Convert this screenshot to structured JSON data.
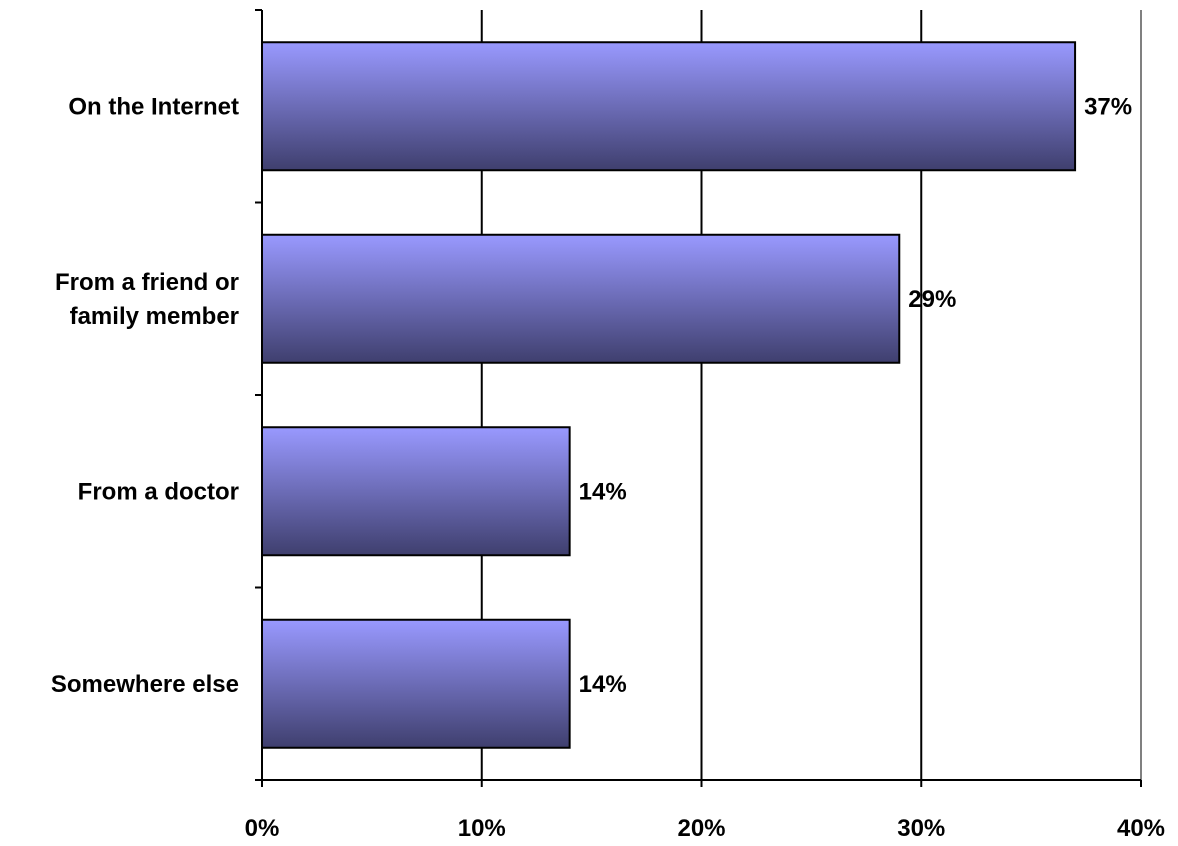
{
  "chart_data": {
    "type": "bar",
    "orientation": "horizontal",
    "categories": [
      [
        "On the Internet"
      ],
      [
        "From a friend or",
        "family member"
      ],
      [
        "From a doctor"
      ],
      [
        "Somewhere else"
      ]
    ],
    "values": [
      37,
      29,
      14,
      14
    ],
    "data_labels": [
      "37%",
      "29%",
      "14%",
      "14%"
    ],
    "x_ticks": [
      "0%",
      "10%",
      "20%",
      "30%",
      "40%"
    ],
    "xlim": [
      0,
      40
    ],
    "grid": true,
    "title": "",
    "xlabel": "",
    "ylabel": "",
    "colors": {
      "bar_top": "#9999ff",
      "bar_bottom": "#3f3f6e",
      "bar_edge": "#000000",
      "grid": "#000000",
      "frame": "#808080"
    }
  }
}
